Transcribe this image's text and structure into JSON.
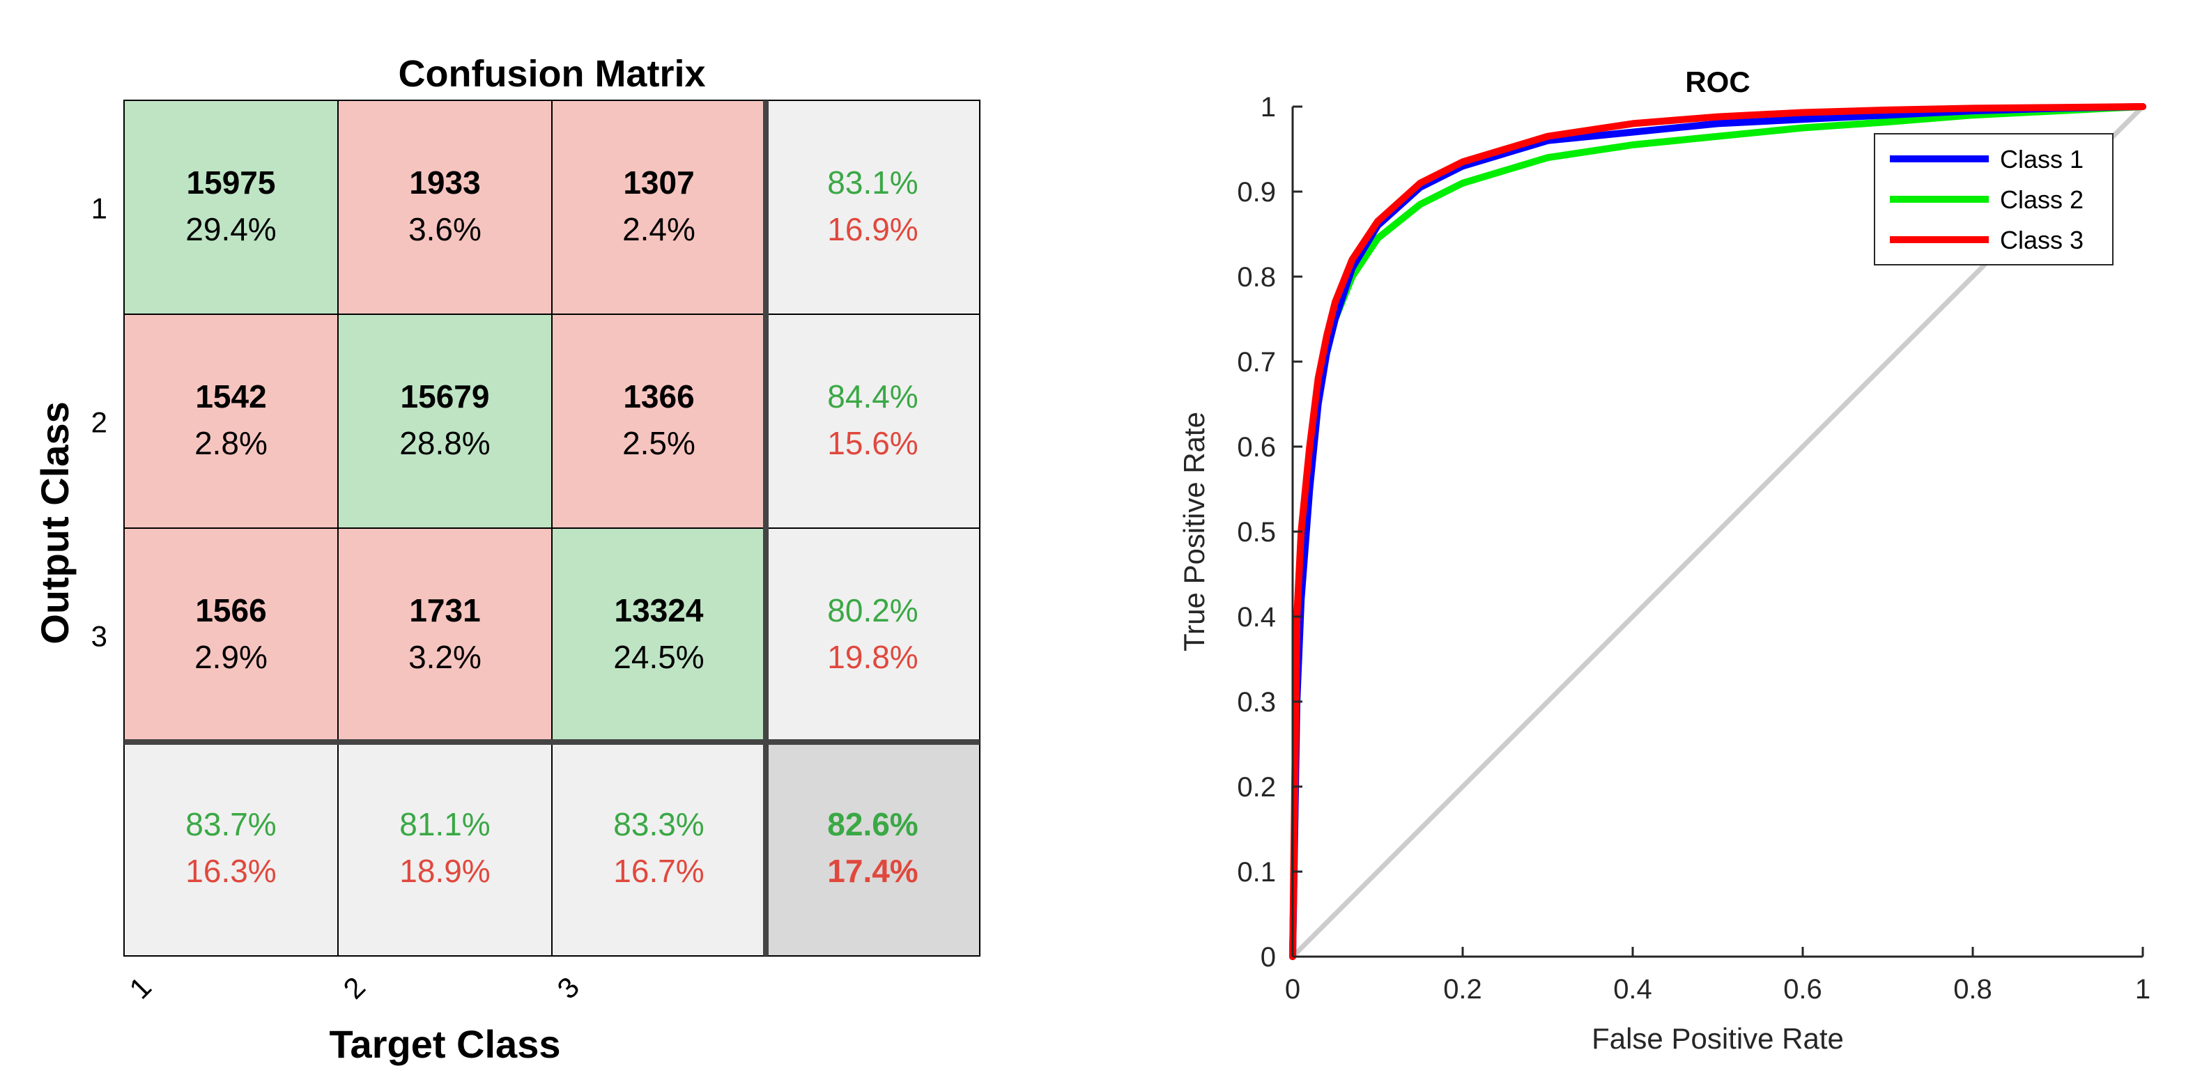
{
  "confusion_matrix": {
    "title": "Confusion Matrix",
    "xlabel": "Target Class",
    "ylabel": "Output Class",
    "classes": [
      "1",
      "2",
      "3"
    ],
    "cells": [
      [
        {
          "count": "15975",
          "pct": "29.4%"
        },
        {
          "count": "1933",
          "pct": "3.6%"
        },
        {
          "count": "1307",
          "pct": "2.4%"
        }
      ],
      [
        {
          "count": "1542",
          "pct": "2.8%"
        },
        {
          "count": "15679",
          "pct": "28.8%"
        },
        {
          "count": "1366",
          "pct": "2.5%"
        }
      ],
      [
        {
          "count": "1566",
          "pct": "2.9%"
        },
        {
          "count": "1731",
          "pct": "3.2%"
        },
        {
          "count": "13324",
          "pct": "24.5%"
        }
      ]
    ],
    "row_summary": [
      {
        "correct": "83.1%",
        "wrong": "16.9%"
      },
      {
        "correct": "84.4%",
        "wrong": "15.6%"
      },
      {
        "correct": "80.2%",
        "wrong": "19.8%"
      }
    ],
    "col_summary": [
      {
        "correct": "83.7%",
        "wrong": "16.3%"
      },
      {
        "correct": "81.1%",
        "wrong": "18.9%"
      },
      {
        "correct": "83.3%",
        "wrong": "16.7%"
      }
    ],
    "overall": {
      "correct": "82.6%",
      "wrong": "17.4%"
    },
    "colors": {
      "diag": "#bee4c4",
      "offdiag": "#f6c4bf",
      "summary": "#f0f0f0",
      "overall": "#d9d9d9",
      "green_text": "#3aa845",
      "red_text": "#e0483d"
    }
  },
  "chart_data": {
    "type": "line",
    "title": "ROC",
    "xlabel": "False Positive Rate",
    "ylabel": "True Positive Rate",
    "xlim": [
      0,
      1
    ],
    "ylim": [
      0,
      1
    ],
    "xticks": [
      "0",
      "0.2",
      "0.4",
      "0.6",
      "0.8",
      "1"
    ],
    "yticks": [
      "0",
      "0.1",
      "0.2",
      "0.3",
      "0.4",
      "0.5",
      "0.6",
      "0.7",
      "0.8",
      "0.9",
      "1"
    ],
    "legend_position": "top-right",
    "series": [
      {
        "name": "Class 1",
        "color": "#0000ff",
        "x": [
          0,
          0.005,
          0.01,
          0.02,
          0.03,
          0.04,
          0.05,
          0.07,
          0.1,
          0.15,
          0.2,
          0.3,
          0.4,
          0.5,
          0.6,
          0.7,
          0.8,
          0.9,
          1
        ],
        "y": [
          0,
          0.3,
          0.42,
          0.55,
          0.65,
          0.71,
          0.75,
          0.81,
          0.86,
          0.905,
          0.93,
          0.96,
          0.97,
          0.98,
          0.985,
          0.99,
          0.995,
          0.998,
          1
        ]
      },
      {
        "name": "Class 2",
        "color": "#00ee00",
        "x": [
          0,
          0.005,
          0.01,
          0.02,
          0.03,
          0.04,
          0.05,
          0.07,
          0.1,
          0.15,
          0.2,
          0.3,
          0.4,
          0.5,
          0.6,
          0.7,
          0.8,
          0.9,
          1
        ],
        "y": [
          0,
          0.32,
          0.45,
          0.58,
          0.66,
          0.71,
          0.75,
          0.8,
          0.845,
          0.885,
          0.91,
          0.94,
          0.955,
          0.965,
          0.975,
          0.982,
          0.99,
          0.995,
          1
        ]
      },
      {
        "name": "Class 3",
        "color": "#ff0000",
        "x": [
          0,
          0.005,
          0.01,
          0.02,
          0.03,
          0.04,
          0.05,
          0.07,
          0.1,
          0.15,
          0.2,
          0.3,
          0.4,
          0.5,
          0.6,
          0.7,
          0.8,
          0.9,
          1
        ],
        "y": [
          0,
          0.4,
          0.5,
          0.6,
          0.68,
          0.73,
          0.77,
          0.82,
          0.865,
          0.91,
          0.935,
          0.965,
          0.98,
          0.988,
          0.993,
          0.996,
          0.998,
          0.999,
          1
        ]
      },
      {
        "name": "",
        "color": "#cccccc",
        "x": [
          0,
          1
        ],
        "y": [
          0,
          1
        ]
      }
    ]
  }
}
